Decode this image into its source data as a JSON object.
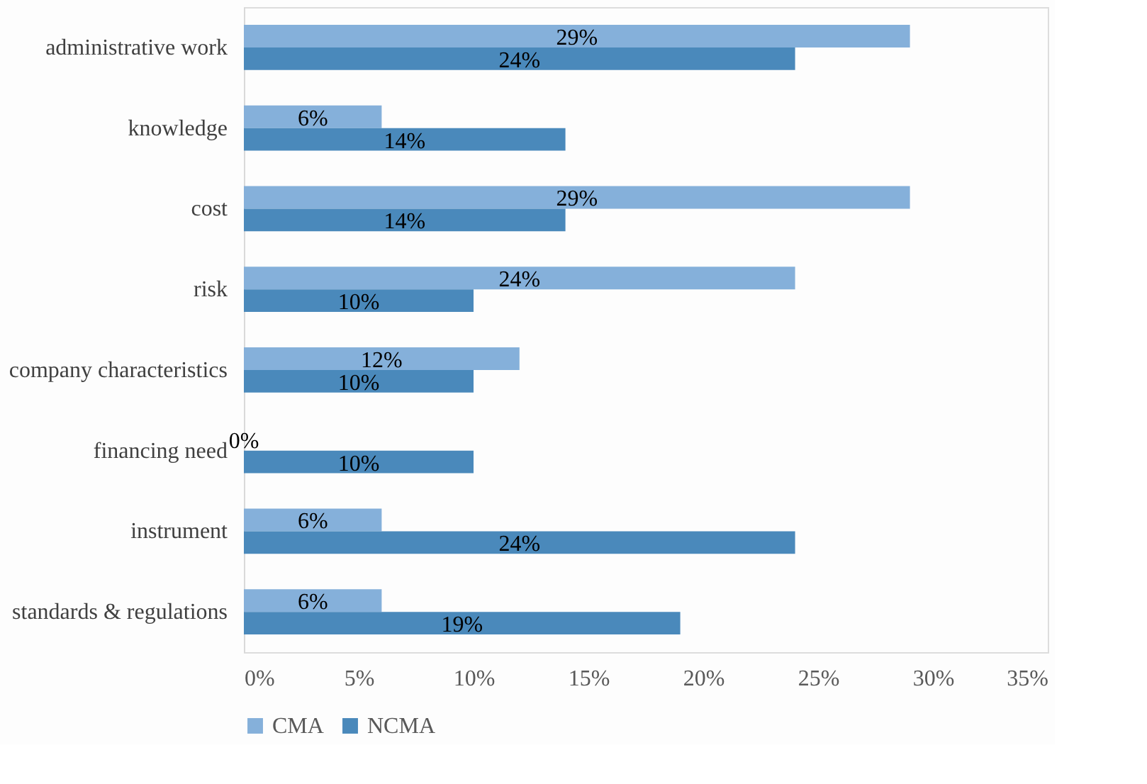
{
  "chart_data": {
    "type": "bar",
    "orientation": "horizontal",
    "categories": [
      "administrative work",
      "knowledge",
      "cost",
      "risk",
      "company characteristics",
      "financing need",
      "instrument",
      "standards & regulations"
    ],
    "series": [
      {
        "name": "CMA",
        "color": "#85b0da",
        "values": [
          29,
          6,
          29,
          24,
          12,
          0,
          6,
          6
        ],
        "value_labels": [
          "29%",
          "6%",
          "29%",
          "24%",
          "12%",
          "0%",
          "6%",
          "6%"
        ]
      },
      {
        "name": "NCMA",
        "color": "#4a89bb",
        "values": [
          24,
          14,
          14,
          10,
          10,
          10,
          24,
          19
        ],
        "value_labels": [
          "24%",
          "14%",
          "14%",
          "10%",
          "10%",
          "10%",
          "24%",
          "19%"
        ]
      }
    ],
    "xlim": [
      0,
      35
    ],
    "xticks": [
      {
        "value": 0,
        "label": "0%"
      },
      {
        "value": 5,
        "label": "5%"
      },
      {
        "value": 10,
        "label": "10%"
      },
      {
        "value": 15,
        "label": "15%"
      },
      {
        "value": 20,
        "label": "20%"
      },
      {
        "value": 25,
        "label": "25%"
      },
      {
        "value": 30,
        "label": "30%"
      },
      {
        "value": 35,
        "label": "35%"
      }
    ],
    "grid": false,
    "legend": "bottom"
  }
}
